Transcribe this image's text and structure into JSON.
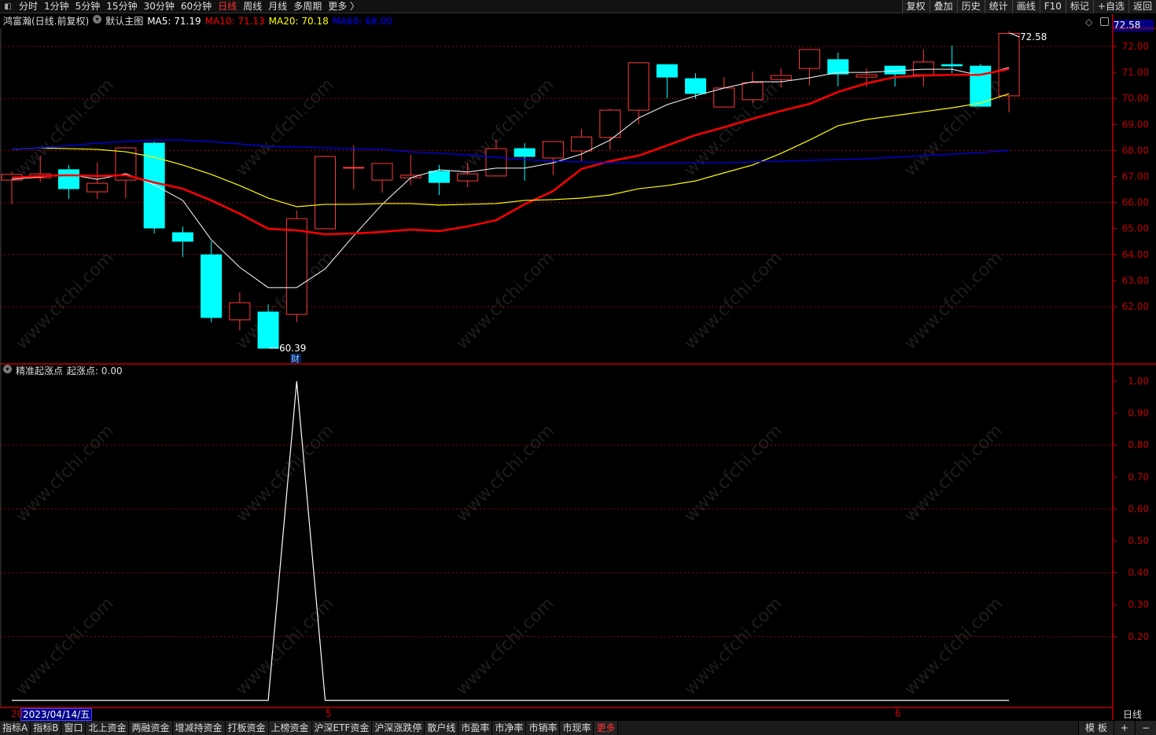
{
  "topbar": {
    "periods": [
      "分时",
      "1分钟",
      "5分钟",
      "15分钟",
      "30分钟",
      "60分钟",
      "日线",
      "周线",
      "月线",
      "多周期",
      "更多 〉"
    ],
    "active": "日线",
    "tools": [
      "复权",
      "叠加",
      "历史",
      "统计",
      "画线",
      "F10",
      "标记",
      "+自选",
      "返回"
    ]
  },
  "legend": {
    "stock": "鸿富瀚(日线.前复权)",
    "main": "默认主图",
    "ma5": "MA5: 71.19",
    "ma10": "MA10: 71.13",
    "ma20": "MA20: 70.18",
    "ma60": "MA60: 68.00"
  },
  "indicator_legend": {
    "name": "精准起涨点",
    "value": "起涨点: 0.00"
  },
  "price_box": "72.58",
  "high_label": "72.58",
  "low_label": "60.39",
  "finance_marker": "财",
  "date_axis": {
    "selected": "2023/04/14/五",
    "prefix": "20",
    "months": [
      "5",
      "6"
    ]
  },
  "period_label": "日线",
  "bottombar": {
    "tabs": [
      "指标A",
      "指标B",
      "窗口",
      "北上资金",
      "两融资金",
      "增减持资金",
      "打板资金",
      "上榜资金",
      "沪深ETF资金",
      "沪深涨跌停",
      "散户线",
      "市盈率",
      "市净率",
      "市销率",
      "市现率"
    ],
    "more": "更多",
    "right": [
      "模 板",
      "+",
      "−"
    ]
  },
  "watermark": "www.cfchi.com",
  "colors": {
    "up": "#ff3b3b",
    "down": "#00ffff",
    "ma5": "#ffffff",
    "ma10": "#ff0000",
    "ma20": "#ffff00",
    "ma60": "#0000ff",
    "axis": "#c00000",
    "grid": "#a00000"
  },
  "chart_data": [
    {
      "type": "candlestick",
      "ylim": [
        60,
        72.8
      ],
      "yticks": [
        62,
        63,
        64,
        65,
        66,
        67,
        68,
        69,
        70,
        71,
        72
      ],
      "grid": true,
      "candles": [
        [
          66.86,
          67.18,
          65.93,
          67.08
        ],
        [
          66.95,
          67.8,
          66.8,
          67.1
        ],
        [
          67.26,
          67.44,
          66.14,
          66.53
        ],
        [
          66.41,
          67.53,
          66.14,
          66.74
        ],
        [
          66.86,
          68.13,
          66.17,
          68.1
        ],
        [
          68.28,
          68.34,
          64.81,
          65.02
        ],
        [
          64.84,
          65.08,
          63.9,
          64.51
        ],
        [
          63.99,
          64.51,
          61.4,
          61.58
        ],
        [
          61.49,
          62.54,
          61.09,
          62.15
        ],
        [
          61.79,
          62.09,
          60.39,
          60.4
        ],
        [
          61.7,
          65.69,
          61.4,
          65.38
        ],
        [
          64.99,
          67.8,
          64.98,
          67.77
        ],
        [
          67.35,
          68.2,
          66.5,
          67.35
        ],
        [
          66.86,
          67.5,
          66.38,
          67.5
        ],
        [
          66.95,
          67.83,
          66.68,
          67.05
        ],
        [
          67.2,
          67.44,
          66.29,
          66.77
        ],
        [
          66.83,
          67.53,
          66.59,
          67.1
        ],
        [
          67.02,
          68.43,
          67.0,
          68.07
        ],
        [
          68.07,
          68.28,
          66.83,
          67.77
        ],
        [
          67.71,
          68.34,
          67.05,
          68.34
        ],
        [
          67.98,
          68.83,
          67.59,
          68.52
        ],
        [
          68.5,
          69.61,
          68.04,
          69.55
        ],
        [
          69.55,
          71.37,
          69.0,
          71.37
        ],
        [
          71.3,
          71.3,
          70.0,
          70.82
        ],
        [
          70.76,
          70.97,
          69.98,
          70.19
        ],
        [
          69.67,
          70.82,
          69.67,
          70.4
        ],
        [
          69.95,
          71.03,
          69.82,
          70.61
        ],
        [
          70.73,
          71.15,
          70.43,
          70.88
        ],
        [
          71.15,
          71.88,
          70.49,
          71.88
        ],
        [
          71.49,
          71.76,
          70.46,
          70.94
        ],
        [
          70.82,
          71.15,
          70.43,
          70.91
        ],
        [
          71.24,
          71.24,
          70.46,
          70.94
        ],
        [
          70.91,
          71.88,
          70.46,
          71.4
        ],
        [
          71.3,
          72.03,
          70.97,
          71.25
        ],
        [
          71.24,
          71.33,
          69.7,
          69.7
        ],
        [
          70.1,
          72.58,
          69.46,
          72.5
        ]
      ],
      "candle_fields": [
        "open",
        "high",
        "low",
        "close"
      ],
      "series": [
        {
          "name": "MA5",
          "values": [
            66.89,
            66.98,
            67.08,
            66.89,
            67.11,
            66.68,
            66.08,
            64.57,
            63.51,
            62.73,
            62.73,
            63.45,
            64.72,
            65.93,
            66.95,
            67.26,
            67.17,
            67.32,
            67.32,
            67.53,
            67.86,
            68.4,
            69.25,
            69.76,
            70.1,
            70.4,
            70.64,
            70.64,
            70.79,
            71.0,
            71.0,
            71.06,
            71.12,
            71.12,
            70.88,
            71.19
          ]
        },
        {
          "name": "MA10",
          "values": [
            66.95,
            67.02,
            67.05,
            67.02,
            67.05,
            66.77,
            66.53,
            66.08,
            65.57,
            64.99,
            64.93,
            64.78,
            64.81,
            64.87,
            64.96,
            64.9,
            65.08,
            65.32,
            65.93,
            66.44,
            67.29,
            67.59,
            67.8,
            68.19,
            68.59,
            68.89,
            69.22,
            69.52,
            69.79,
            70.25,
            70.58,
            70.82,
            70.88,
            70.91,
            70.91,
            71.13
          ]
        },
        {
          "name": "MA20",
          "values": [
            68.04,
            68.1,
            68.07,
            68.04,
            67.95,
            67.74,
            67.44,
            67.08,
            66.65,
            66.17,
            65.84,
            65.93,
            65.93,
            65.96,
            65.96,
            65.9,
            65.93,
            65.96,
            66.08,
            66.11,
            66.17,
            66.29,
            66.53,
            66.65,
            66.83,
            67.14,
            67.44,
            67.89,
            68.4,
            68.95,
            69.19,
            69.34,
            69.49,
            69.64,
            69.82,
            70.18
          ]
        },
        {
          "name": "MA60",
          "values": [
            68.04,
            68.1,
            68.19,
            68.28,
            68.34,
            68.4,
            68.4,
            68.34,
            68.25,
            68.16,
            68.13,
            68.1,
            68.07,
            68.04,
            67.95,
            67.89,
            67.83,
            67.74,
            67.65,
            67.59,
            67.56,
            67.53,
            67.53,
            67.53,
            67.53,
            67.53,
            67.56,
            67.59,
            67.62,
            67.65,
            67.68,
            67.74,
            67.8,
            67.86,
            67.92,
            68.0
          ]
        }
      ]
    },
    {
      "type": "line",
      "title": "精准起涨点",
      "ylim": [
        0,
        1.05
      ],
      "yticks": [
        "1.00",
        "0.90",
        "0.80",
        "0.70",
        "0.60",
        "0.50",
        "0.40",
        "0.30",
        "0.20"
      ],
      "series": [
        {
          "name": "起涨点",
          "values": [
            0,
            0,
            0,
            0,
            0,
            0,
            0,
            0,
            0,
            0,
            1,
            0,
            0,
            0,
            0,
            0,
            0,
            0,
            0,
            0,
            0,
            0,
            0,
            0,
            0,
            0,
            0,
            0,
            0,
            0,
            0,
            0,
            0,
            0,
            0,
            0
          ]
        }
      ]
    }
  ]
}
